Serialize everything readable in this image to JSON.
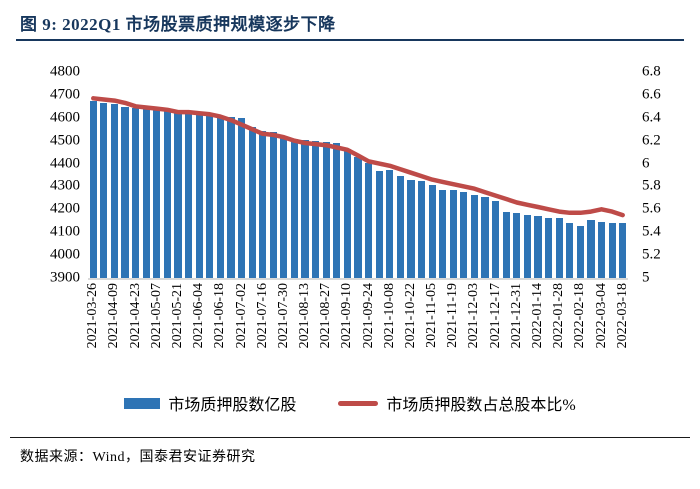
{
  "title": "图 9: 2022Q1 市场股票质押规模逐步下降",
  "source_note": "数据来源：Wind，国泰君安证券研究",
  "colors": {
    "bar": "#2E74B5",
    "line": "#BE4B48",
    "title": "#17375D",
    "baseline": "#D9D9D9"
  },
  "legend": {
    "bar_label": "市场质押股数亿股",
    "line_label": "市场质押股数占总股本比%"
  },
  "chart_data": {
    "type": "bar",
    "subtype": "bar+line dual axis",
    "x_labels": [
      "2021-03-26",
      "2021-04-09",
      "2021-04-23",
      "2021-05-07",
      "2021-05-21",
      "2021-06-04",
      "2021-06-18",
      "2021-07-02",
      "2021-07-16",
      "2021-07-30",
      "2021-08-13",
      "2021-08-27",
      "2021-09-10",
      "2021-09-24",
      "2021-10-08",
      "2021-10-22",
      "2021-11-05",
      "2021-11-19",
      "2021-12-03",
      "2021-12-17",
      "2021-12-31",
      "2022-01-14",
      "2022-01-28",
      "2022-02-18",
      "2022-03-04",
      "2022-03-18"
    ],
    "label_every_n_bars": 2,
    "series": [
      {
        "name": "市场质押股数亿股",
        "type": "bar",
        "axis": "left",
        "values": [
          4673,
          4665,
          4660,
          4648,
          4643,
          4640,
          4640,
          4632,
          4625,
          4619,
          4620,
          4612,
          4605,
          4603,
          4598,
          4559,
          4544,
          4537,
          4515,
          4507,
          4504,
          4500,
          4495,
          4489,
          4463,
          4430,
          4404,
          4367,
          4374,
          4345,
          4330,
          4323,
          4308,
          4286,
          4283,
          4274,
          4264,
          4252,
          4238,
          4190,
          4183,
          4175,
          4171,
          4164,
          4161,
          4139,
          4127,
          4153,
          4146,
          4142,
          4139
        ]
      },
      {
        "name": "市场质押股数占总股本比%",
        "type": "line",
        "axis": "right",
        "values": [
          6.57,
          6.56,
          6.55,
          6.53,
          6.5,
          6.49,
          6.48,
          6.47,
          6.45,
          6.45,
          6.44,
          6.43,
          6.41,
          6.38,
          6.34,
          6.3,
          6.26,
          6.25,
          6.23,
          6.2,
          6.18,
          6.17,
          6.16,
          6.14,
          6.12,
          6.07,
          6.02,
          6.0,
          5.98,
          5.95,
          5.92,
          5.89,
          5.86,
          5.84,
          5.82,
          5.8,
          5.78,
          5.75,
          5.72,
          5.69,
          5.66,
          5.64,
          5.62,
          5.6,
          5.58,
          5.57,
          5.57,
          5.58,
          5.6,
          5.58,
          5.55
        ]
      }
    ],
    "left_axis": {
      "min": 3900,
      "max": 4800,
      "ticks": [
        4800,
        4700,
        4600,
        4500,
        4400,
        4300,
        4200,
        4100,
        4000,
        3900
      ]
    },
    "right_axis": {
      "min": 5,
      "max": 6.8,
      "ticks": [
        "6.8",
        "6.6",
        "6.4",
        "6.2",
        "6",
        "5.8",
        "5.6",
        "5.4",
        "5.2",
        "5"
      ]
    },
    "grid": false,
    "legend_position": "bottom"
  }
}
